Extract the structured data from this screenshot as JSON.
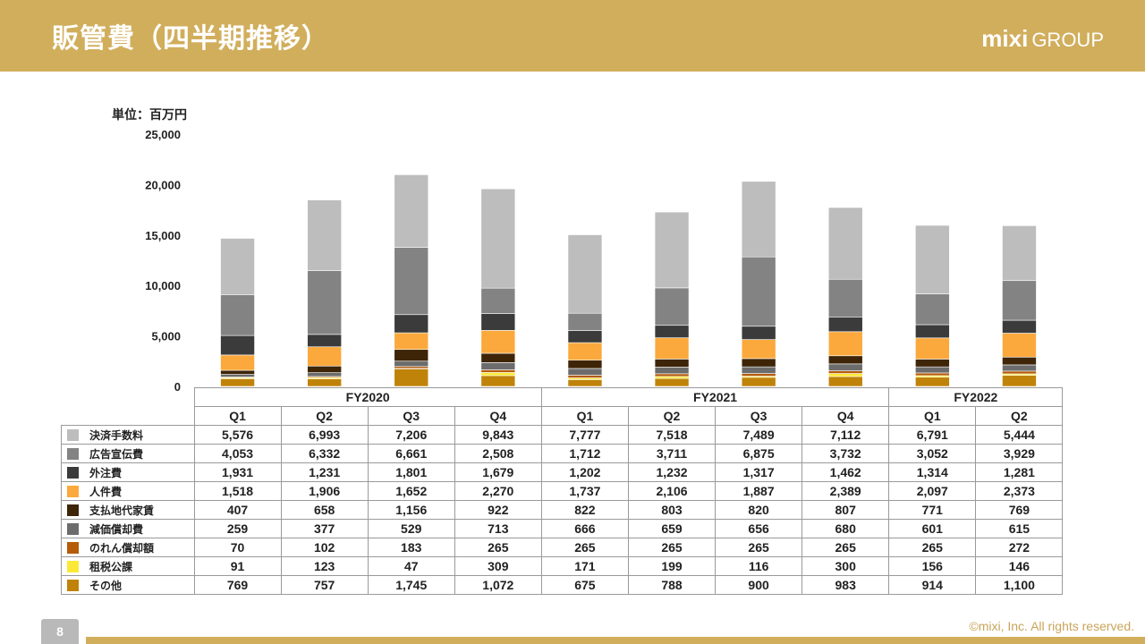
{
  "header": {
    "title": "販管費（四半期推移）",
    "logo_main": "mixi",
    "logo_sub": "GROUP"
  },
  "unit_label": "単位：百万円",
  "page_number": "8",
  "copyright": "©mixi, Inc. All rights reserved.",
  "colors": {
    "header_bg": "#d1ae5c",
    "series": [
      "#bdbdbd",
      "#838383",
      "#3b3b3b",
      "#fba93c",
      "#3e2508",
      "#6c6c6c",
      "#b55b0a",
      "#fce937",
      "#c08309"
    ]
  },
  "chart_data": {
    "type": "bar",
    "stacked": true,
    "ylim": [
      0,
      25000
    ],
    "yticks": [
      "25,000",
      "20,000",
      "15,000",
      "10,000",
      "5,000",
      "0"
    ],
    "grid": false,
    "groups": [
      {
        "label": "FY2020",
        "span": 4
      },
      {
        "label": "FY2021",
        "span": 4
      },
      {
        "label": "FY2022",
        "span": 2
      }
    ],
    "categories": [
      "Q1",
      "Q2",
      "Q3",
      "Q4",
      "Q1",
      "Q2",
      "Q3",
      "Q4",
      "Q1",
      "Q2"
    ],
    "series": [
      {
        "name": "決済手数料",
        "values": [
          5576,
          6993,
          7206,
          9843,
          7777,
          7518,
          7489,
          7112,
          6791,
          5444
        ],
        "display": [
          "5,576",
          "6,993",
          "7,206",
          "9,843",
          "7,777",
          "7,518",
          "7,489",
          "7,112",
          "6,791",
          "5,444"
        ]
      },
      {
        "name": "広告宣伝費",
        "values": [
          4053,
          6332,
          6661,
          2508,
          1712,
          3711,
          6875,
          3732,
          3052,
          3929
        ],
        "display": [
          "4,053",
          "6,332",
          "6,661",
          "2,508",
          "1,712",
          "3,711",
          "6,875",
          "3,732",
          "3,052",
          "3,929"
        ]
      },
      {
        "name": "外注費",
        "values": [
          1931,
          1231,
          1801,
          1679,
          1202,
          1232,
          1317,
          1462,
          1314,
          1281
        ],
        "display": [
          "1,931",
          "1,231",
          "1,801",
          "1,679",
          "1,202",
          "1,232",
          "1,317",
          "1,462",
          "1,314",
          "1,281"
        ]
      },
      {
        "name": "人件費",
        "values": [
          1518,
          1906,
          1652,
          2270,
          1737,
          2106,
          1887,
          2389,
          2097,
          2373
        ],
        "display": [
          "1,518",
          "1,906",
          "1,652",
          "2,270",
          "1,737",
          "2,106",
          "1,887",
          "2,389",
          "2,097",
          "2,373"
        ]
      },
      {
        "name": "支払地代家賃",
        "values": [
          407,
          658,
          1156,
          922,
          822,
          803,
          820,
          807,
          771,
          769
        ],
        "display": [
          "407",
          "658",
          "1,156",
          "922",
          "822",
          "803",
          "820",
          "807",
          "771",
          "769"
        ]
      },
      {
        "name": "減価償却費",
        "values": [
          259,
          377,
          529,
          713,
          666,
          659,
          656,
          680,
          601,
          615
        ],
        "display": [
          "259",
          "377",
          "529",
          "713",
          "666",
          "659",
          "656",
          "680",
          "601",
          "615"
        ]
      },
      {
        "name": "のれん償却額",
        "values": [
          70,
          102,
          183,
          265,
          265,
          265,
          265,
          265,
          265,
          272
        ],
        "display": [
          "70",
          "102",
          "183",
          "265",
          "265",
          "265",
          "265",
          "265",
          "265",
          "272"
        ]
      },
      {
        "name": "租税公課",
        "values": [
          91,
          123,
          47,
          309,
          171,
          199,
          116,
          300,
          156,
          146
        ],
        "display": [
          "91",
          "123",
          "47",
          "309",
          "171",
          "199",
          "116",
          "300",
          "156",
          "146"
        ]
      },
      {
        "name": "その他",
        "values": [
          769,
          757,
          1745,
          1072,
          675,
          788,
          900,
          983,
          914,
          1100
        ],
        "display": [
          "769",
          "757",
          "1,745",
          "1,072",
          "675",
          "788",
          "900",
          "983",
          "914",
          "1,100"
        ]
      }
    ]
  }
}
